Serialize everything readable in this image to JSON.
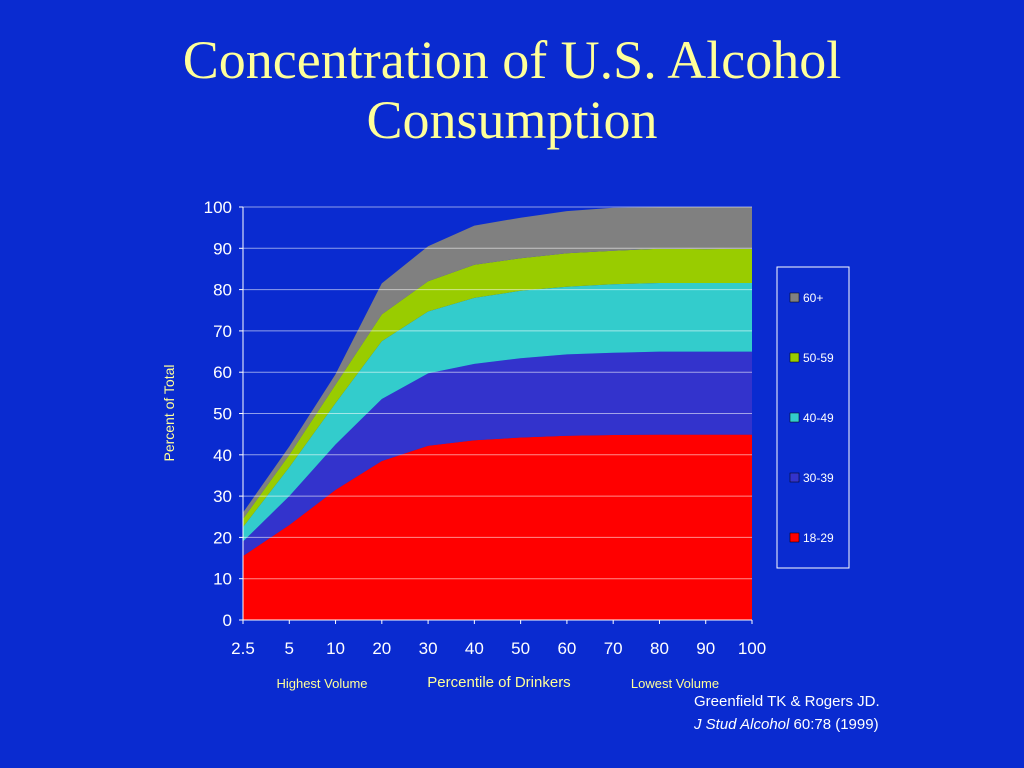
{
  "title": {
    "line1": "Concentration of U.S. Alcohol",
    "line2": "Consumption"
  },
  "citation": {
    "line1": "Greenfield TK & Rogers JD.",
    "journal": "J Stud Alcohol",
    "ref": "60:78 (1999)"
  },
  "colors": {
    "background": "#0a2bd0",
    "title": "#ffff99",
    "axis_label": "#ffff99"
  },
  "chart_data": {
    "type": "area",
    "stacked": true,
    "title": "",
    "xlabel": "Percentile of Drinkers",
    "xlabel_left": "Highest Volume",
    "xlabel_right": "Lowest Volume",
    "ylabel": "Percent of Total",
    "ylim": [
      0,
      100
    ],
    "yticks": [
      0,
      10,
      20,
      30,
      40,
      50,
      60,
      70,
      80,
      90,
      100
    ],
    "categories": [
      "2.5",
      "5",
      "10",
      "20",
      "30",
      "40",
      "50",
      "60",
      "70",
      "80",
      "90",
      "100"
    ],
    "grid": true,
    "legend_position": "right",
    "series": [
      {
        "name": "18-29",
        "color": "#ff0000",
        "values": [
          15.5,
          23,
          31.5,
          38.5,
          42.2,
          43.5,
          44.2,
          44.6,
          44.8,
          44.9,
          44.9,
          44.9
        ]
      },
      {
        "name": "30-39",
        "color": "#3333cc",
        "values": [
          3.5,
          7,
          11,
          15,
          17.5,
          18.5,
          19.2,
          19.7,
          19.9,
          20.1,
          20.1,
          20.1
        ]
      },
      {
        "name": "40-49",
        "color": "#33cccc",
        "values": [
          3.5,
          7,
          10,
          14,
          15,
          16,
          16.3,
          16.4,
          16.6,
          16.6,
          16.6,
          16.6
        ]
      },
      {
        "name": "50-59",
        "color": "#99cc00",
        "values": [
          2,
          3,
          4.5,
          6.5,
          7.3,
          8,
          7.9,
          8.1,
          8.1,
          8.3,
          8.2,
          8.3
        ]
      },
      {
        "name": "60+",
        "color": "#808080",
        "values": [
          1.5,
          2,
          2.5,
          7.5,
          8.5,
          9.5,
          9.8,
          10.2,
          10.4,
          10.1,
          10.2,
          10.1
        ]
      }
    ]
  }
}
